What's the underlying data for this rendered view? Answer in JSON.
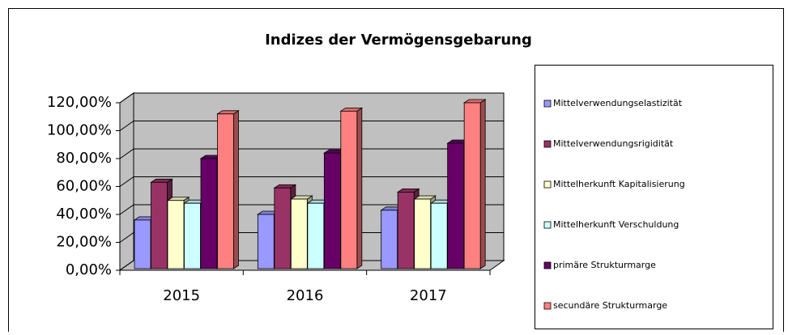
{
  "chart_data": {
    "type": "bar3d",
    "title": "Indizes der Vermögensgebarung",
    "categories": [
      "2015",
      "2016",
      "2017"
    ],
    "series": [
      {
        "name": "Mittelverwendungselastizität",
        "color": "#9999ff",
        "values": [
          36,
          40,
          43
        ]
      },
      {
        "name": "Mittelverwendungsrigidität",
        "color": "#993366",
        "values": [
          63,
          59,
          56
        ]
      },
      {
        "name": "Mittelherkunft Kapitalisierung",
        "color": "#ffffcc",
        "values": [
          50,
          51,
          51
        ]
      },
      {
        "name": "Mittelherkunft Verschuldung",
        "color": "#ccffff",
        "values": [
          48,
          48,
          48
        ]
      },
      {
        "name": "primäre Strukturmarge",
        "color": "#660066",
        "values": [
          80,
          84,
          91
        ]
      },
      {
        "name": "secundäre Strukturmarge",
        "color": "#ff8080",
        "values": [
          112,
          114,
          120
        ]
      }
    ],
    "ylim": [
      0,
      120
    ],
    "yticks": [
      {
        "value": 0,
        "label": "0,00%"
      },
      {
        "value": 20,
        "label": "20,00%"
      },
      {
        "value": 40,
        "label": "40,00%"
      },
      {
        "value": 60,
        "label": "60,00%"
      },
      {
        "value": 80,
        "label": "80,00%"
      },
      {
        "value": 100,
        "label": "100,00%"
      },
      {
        "value": 120,
        "label": "120,00%"
      }
    ],
    "grid": true,
    "legend": "right"
  }
}
